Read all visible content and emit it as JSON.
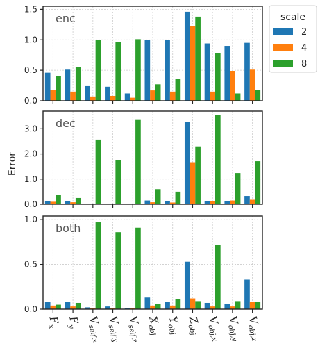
{
  "chart_data": {
    "type": "bar",
    "ylabel": "Error",
    "categories": [
      {
        "base": "F",
        "sub": "x"
      },
      {
        "base": "F",
        "sub": "y"
      },
      {
        "base": "V",
        "sub": "self,x"
      },
      {
        "base": "V",
        "sub": "self,y"
      },
      {
        "base": "V",
        "sub": "self,z"
      },
      {
        "base": "X",
        "sub": "obj"
      },
      {
        "base": "Y",
        "sub": "obj"
      },
      {
        "base": "Z",
        "sub": "obj"
      },
      {
        "base": "V",
        "sub": "obj,x"
      },
      {
        "base": "V",
        "sub": "obj,y"
      },
      {
        "base": "V",
        "sub": "obj,z"
      }
    ],
    "legend": {
      "title": "scale",
      "placement": "outside-top-right",
      "entries": [
        {
          "label": "2",
          "color": "#1f77b4"
        },
        {
          "label": "4",
          "color": "#ff7f0e"
        },
        {
          "label": "8",
          "color": "#2ca02c"
        }
      ]
    },
    "grid": true,
    "panels": [
      {
        "label": "enc",
        "ylim": [
          0,
          1.55
        ],
        "yticks": [
          "0.0",
          "0.5",
          "1.0",
          "1.5"
        ],
        "ytick_values": [
          0,
          0.5,
          1.0,
          1.5
        ],
        "series": [
          {
            "name": "2",
            "values": [
              0.46,
              0.51,
              0.24,
              0.23,
              0.12,
              1.0,
              1.0,
              1.46,
              0.94,
              0.9,
              0.95
            ]
          },
          {
            "name": "4",
            "values": [
              0.18,
              0.15,
              0.07,
              0.08,
              0.05,
              0.17,
              0.15,
              1.22,
              0.15,
              0.49,
              0.51
            ]
          },
          {
            "name": "8",
            "values": [
              0.41,
              0.55,
              1.0,
              0.96,
              1.01,
              0.27,
              0.36,
              1.38,
              0.78,
              0.12,
              0.18
            ]
          }
        ]
      },
      {
        "label": "dec",
        "ylim": [
          0,
          3.7
        ],
        "yticks": [
          "0.0",
          "1.0",
          "2.0",
          "3.0"
        ],
        "ytick_values": [
          0,
          1.0,
          2.0,
          3.0
        ],
        "series": [
          {
            "name": "2",
            "values": [
              0.13,
              0.13,
              0.02,
              0.01,
              0.01,
              0.15,
              0.13,
              3.27,
              0.12,
              0.12,
              0.33
            ]
          },
          {
            "name": "4",
            "values": [
              0.1,
              0.08,
              0.01,
              0.01,
              0.01,
              0.08,
              0.07,
              1.67,
              0.13,
              0.15,
              0.18
            ]
          },
          {
            "name": "8",
            "values": [
              0.36,
              0.25,
              2.57,
              1.75,
              3.35,
              0.6,
              0.5,
              2.3,
              3.56,
              1.24,
              1.71
            ]
          }
        ]
      },
      {
        "label": "both",
        "ylim": [
          0,
          1.04
        ],
        "yticks": [
          "0.0",
          "0.5",
          "1.0"
        ],
        "ytick_values": [
          0,
          0.5,
          1.0
        ],
        "series": [
          {
            "name": "2",
            "values": [
              0.08,
              0.08,
              0.02,
              0.03,
              0.01,
              0.13,
              0.08,
              0.53,
              0.07,
              0.06,
              0.33
            ]
          },
          {
            "name": "4",
            "values": [
              0.04,
              0.03,
              0.01,
              0.01,
              0.01,
              0.04,
              0.04,
              0.12,
              0.03,
              0.03,
              0.08
            ]
          },
          {
            "name": "8",
            "values": [
              0.05,
              0.07,
              0.97,
              0.86,
              0.91,
              0.06,
              0.11,
              0.09,
              0.72,
              0.09,
              0.08
            ]
          }
        ]
      }
    ]
  }
}
